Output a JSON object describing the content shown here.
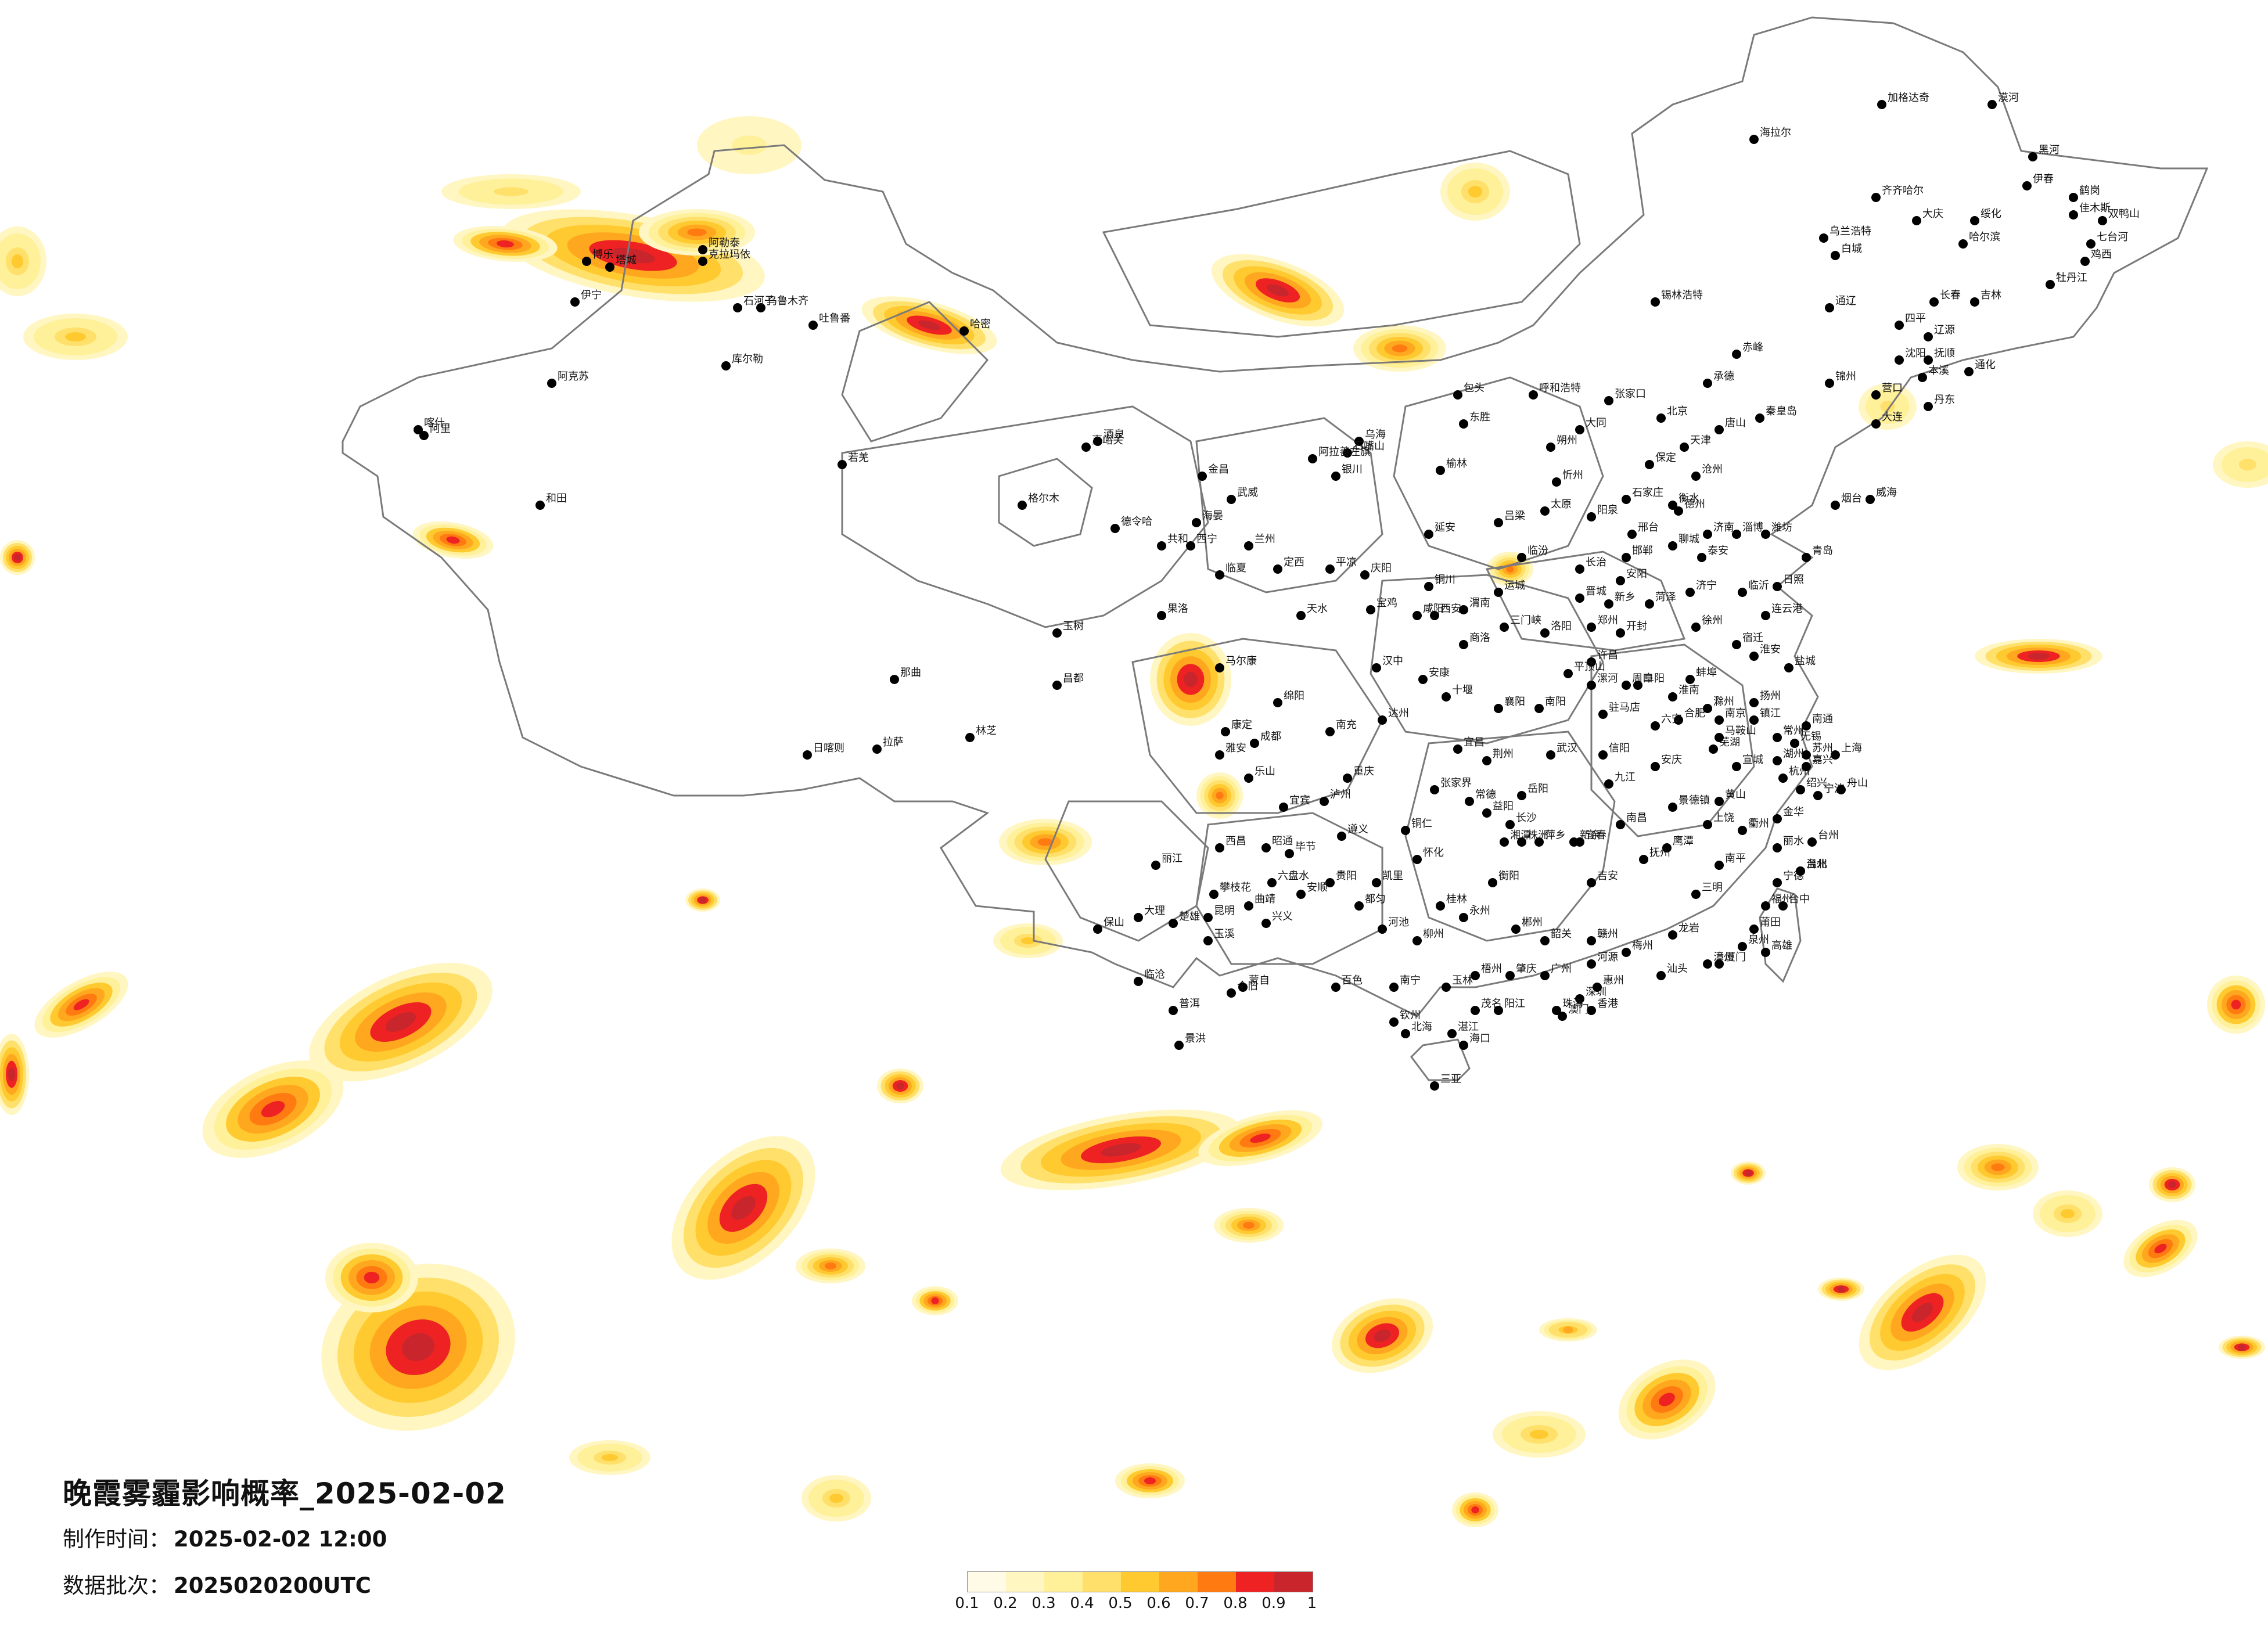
{
  "title": "晚霞雾霾影响概率_2025-02-02",
  "meta": {
    "made_label": "制作时间：",
    "made_value": "2025-02-02 12:00",
    "batch_label": "数据批次：",
    "batch_value": "2025020200UTC"
  },
  "legend": {
    "colors": [
      "#fffbe6",
      "#fff6c2",
      "#fff09a",
      "#ffe06a",
      "#ffc930",
      "#ffa81f",
      "#ff7b12",
      "#ee2222",
      "#c8262c"
    ],
    "ticks": [
      "0.1",
      "0.2",
      "0.3",
      "0.4",
      "0.5",
      "0.6",
      "0.7",
      "0.8",
      "0.9",
      "1"
    ]
  },
  "cities": [
    "漠河",
    "加格达奇",
    "海拉尔",
    "黑河",
    "伊春",
    "鹤岗",
    "佳木斯",
    "双鸭山",
    "七台河",
    "鸡西",
    "牡丹江",
    "哈尔滨",
    "绥化",
    "大庆",
    "齐齐哈尔",
    "乌兰浩特",
    "白城",
    "长春",
    "吉林",
    "通化",
    "通辽",
    "四平",
    "辽源",
    "沈阳",
    "抚顺",
    "本溪",
    "丹东",
    "大连",
    "营口",
    "锦州",
    "赤峰",
    "承德",
    "秦皇岛",
    "唐山",
    "北京",
    "天津",
    "张家口",
    "呼和浩特",
    "包头",
    "锡林浩特",
    "乌海",
    "东胜",
    "银川",
    "石嘴山",
    "阿拉善左旗",
    "嘉峪关",
    "酒泉",
    "金昌",
    "武威",
    "兰州",
    "西宁",
    "临夏",
    "定西",
    "天水",
    "平凉",
    "庆阳",
    "延安",
    "榆林",
    "太原",
    "大同",
    "朔州",
    "忻州",
    "阳泉",
    "长治",
    "晋城",
    "运城",
    "临汾",
    "吕梁",
    "石家庄",
    "保定",
    "沧州",
    "衡水",
    "邢台",
    "邯郸",
    "安阳",
    "新乡",
    "郑州",
    "开封",
    "洛阳",
    "三门峡",
    "许昌",
    "平顶山",
    "漯河",
    "周口",
    "驻马店",
    "信阳",
    "南阳",
    "济南",
    "青岛",
    "烟台",
    "威海",
    "潍坊",
    "淄博",
    "泰安",
    "临沂",
    "日照",
    "济宁",
    "菏泽",
    "聊城",
    "德州",
    "徐州",
    "连云港",
    "宿迁",
    "淮安",
    "盐城",
    "扬州",
    "南京",
    "镇江",
    "常州",
    "无锡",
    "苏州",
    "南通",
    "上海",
    "杭州",
    "宁波",
    "绍兴",
    "嘉兴",
    "湖州",
    "金华",
    "衢州",
    "丽水",
    "温州",
    "台州",
    "舟山",
    "合肥",
    "芜湖",
    "马鞍山",
    "安庆",
    "黄山",
    "阜阳",
    "蚌埠",
    "淮南",
    "六安",
    "滁州",
    "宣城",
    "南昌",
    "九江",
    "景德镇",
    "上饶",
    "鹰潭",
    "抚州",
    "宜春",
    "吉安",
    "赣州",
    "萍乡",
    "新余",
    "福州",
    "厦门",
    "泉州",
    "漳州",
    "莆田",
    "龙岩",
    "三明",
    "南平",
    "宁德",
    "武汉",
    "宜昌",
    "襄阳",
    "十堰",
    "荆州",
    "岳阳",
    "长沙",
    "株洲",
    "湘潭",
    "衡阳",
    "郴州",
    "永州",
    "怀化",
    "常德",
    "益阳",
    "张家界",
    "广州",
    "深圳",
    "珠海",
    "汕头",
    "湛江",
    "茂名",
    "韶关",
    "梅州",
    "肇庆",
    "阳江",
    "河源",
    "惠州",
    "南宁",
    "桂林",
    "柳州",
    "梧州",
    "北海",
    "钦州",
    "玉林",
    "百色",
    "河池",
    "海口",
    "三亚",
    "重庆",
    "成都",
    "绵阳",
    "南充",
    "达州",
    "宜宾",
    "泸州",
    "乐山",
    "雅安",
    "西昌",
    "攀枝花",
    "贵阳",
    "遵义",
    "凯里",
    "都匀",
    "安顺",
    "六盘水",
    "兴义",
    "毕节",
    "铜仁",
    "昆明",
    "大理",
    "丽江",
    "保山",
    "临沧",
    "普洱",
    "景洪",
    "蒙自",
    "个旧",
    "曲靖",
    "玉溪",
    "楚雄",
    "昭通",
    "西安",
    "宝鸡",
    "咸阳",
    "渭南",
    "汉中",
    "安康",
    "商洛",
    "铜川",
    "拉萨",
    "日喀则",
    "林芝",
    "昌都",
    "那曲",
    "阿里",
    "乌鲁木齐",
    "克拉玛依",
    "石河子",
    "伊宁",
    "库尔勒",
    "阿克苏",
    "喀什",
    "和田",
    "哈密",
    "吐鲁番",
    "阿勒泰",
    "塔城",
    "博乐",
    "若羌",
    "格尔木",
    "德令哈",
    "玉树",
    "果洛",
    "共和",
    "海晏",
    "马尔康",
    "康定",
    "台北",
    "高雄",
    "台中",
    "香港",
    "澳门"
  ]
}
